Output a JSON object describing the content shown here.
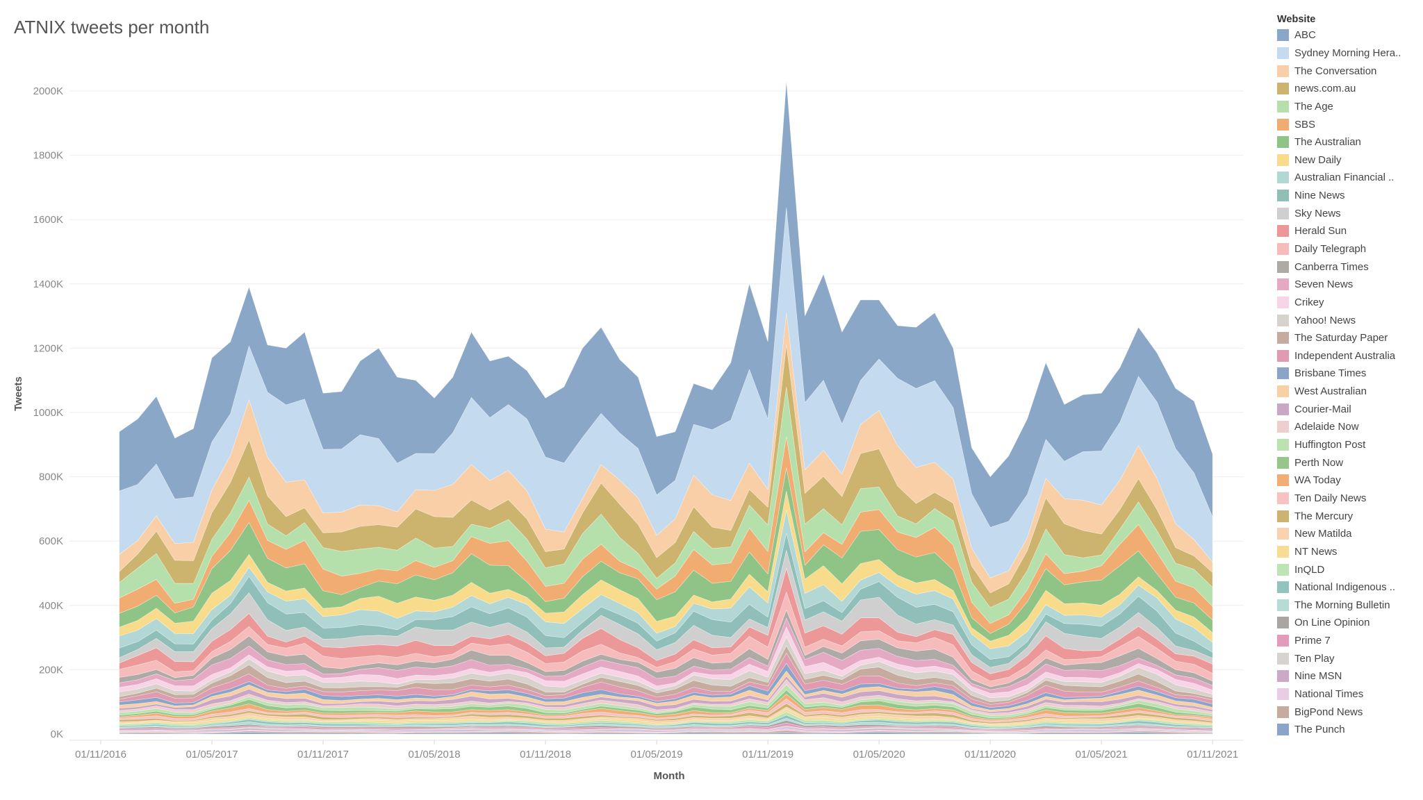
{
  "chart_data": {
    "type": "area",
    "stacked": true,
    "title": "ATNIX tweets per month",
    "xlabel": "Month",
    "ylabel": "Tweets",
    "ylim": [
      0,
      2100000
    ],
    "y_ticks": [
      0,
      200000,
      400000,
      600000,
      800000,
      1000000,
      1200000,
      1400000,
      1600000,
      1800000,
      2000000
    ],
    "y_tick_labels": [
      "0K",
      "200K",
      "400K",
      "600K",
      "800K",
      "1000K",
      "1200K",
      "1400K",
      "1600K",
      "1800K",
      "2000K"
    ],
    "x_tick_labels": [
      "01/11/2016",
      "01/05/2017",
      "01/11/2017",
      "01/05/2018",
      "01/11/2018",
      "01/05/2019",
      "01/11/2019",
      "01/05/2020",
      "01/11/2020",
      "01/05/2021",
      "01/11/2021"
    ],
    "x_range": [
      "01/11/2016",
      "01/12/2021"
    ],
    "first_month": "01/12/2016",
    "legend_title": "Website",
    "legend_position": "right",
    "totals": [
      940,
      980,
      1050,
      920,
      950,
      1170,
      1220,
      1390,
      1210,
      1200,
      1250,
      1060,
      1065,
      1160,
      1200,
      1110,
      1100,
      1045,
      1110,
      1250,
      1160,
      1175,
      1130,
      1045,
      1080,
      1200,
      1265,
      1165,
      1110,
      925,
      940,
      1090,
      1070,
      1155,
      1400,
      1220,
      2030,
      1300,
      1430,
      1250,
      1350,
      1350,
      1270,
      1265,
      1310,
      1200,
      890,
      800,
      865,
      980,
      1155,
      1025,
      1055,
      1060,
      1140,
      1265,
      1185,
      1075,
      1035,
      870
    ],
    "shares": [
      20.0,
      18.0,
      7.5,
      7.0,
      6.0,
      5.0,
      6.0,
      3.5,
      3.5,
      3.5,
      3.5,
      3.0,
      2.5,
      2.0,
      2.0,
      1.5,
      1.5,
      1.5,
      1.5,
      1.0,
      1.0,
      1.0,
      0.8,
      0.8,
      0.8,
      0.8,
      0.6,
      0.6,
      0.6,
      0.5,
      0.5,
      0.5,
      0.4,
      0.4,
      0.4,
      0.3,
      0.3,
      0.3,
      0.3,
      0.3
    ],
    "series": [
      {
        "name": "ABC",
        "color": "#8ba7c8"
      },
      {
        "name": "Sydney Morning Hera..",
        "color": "#c4daee"
      },
      {
        "name": "The Conversation",
        "color": "#f8cfa6"
      },
      {
        "name": "news.com.au",
        "color": "#cdb46e"
      },
      {
        "name": "The Age",
        "color": "#b6e0ab"
      },
      {
        "name": "SBS",
        "color": "#f1ac72"
      },
      {
        "name": "The Australian",
        "color": "#90c487"
      },
      {
        "name": "New Daily",
        "color": "#f8dc8c"
      },
      {
        "name": "Australian Financial ..",
        "color": "#b2d7d5"
      },
      {
        "name": "Nine News",
        "color": "#8fbfb8"
      },
      {
        "name": "Sky News",
        "color": "#cfcfcf"
      },
      {
        "name": "Herald Sun",
        "color": "#ec9898"
      },
      {
        "name": "Daily Telegraph",
        "color": "#f6bcbc"
      },
      {
        "name": "Canberra Times",
        "color": "#aeaaa6"
      },
      {
        "name": "Seven News",
        "color": "#e5a9c4"
      },
      {
        "name": "Crikey",
        "color": "#f8d5e6"
      },
      {
        "name": "Yahoo! News",
        "color": "#d7d2cc"
      },
      {
        "name": "The Saturday Paper",
        "color": "#c6ab9f"
      },
      {
        "name": "Independent Australia",
        "color": "#e09ab1"
      },
      {
        "name": "Brisbane Times",
        "color": "#8aa5c7"
      },
      {
        "name": "West Australian",
        "color": "#f9cfa4"
      },
      {
        "name": "Courier-Mail",
        "color": "#c9a7c5"
      },
      {
        "name": "Adelaide Now",
        "color": "#edcfcf"
      },
      {
        "name": "Huffington Post",
        "color": "#bde2b1"
      },
      {
        "name": "Perth Now",
        "color": "#96c68a"
      },
      {
        "name": "WA Today",
        "color": "#f2ad75"
      },
      {
        "name": "Ten Daily News",
        "color": "#f8c2c2"
      },
      {
        "name": "The Mercury",
        "color": "#ccb370"
      },
      {
        "name": "New Matilda",
        "color": "#f9d2ae"
      },
      {
        "name": "NT News",
        "color": "#f6dc94"
      },
      {
        "name": "InQLD",
        "color": "#bde4b4"
      },
      {
        "name": "National Indigenous ..",
        "color": "#93c3bd"
      },
      {
        "name": "The Morning Bulletin",
        "color": "#b7dbd8"
      },
      {
        "name": "On Line Opinion",
        "color": "#aaa5a3"
      },
      {
        "name": "Prime 7",
        "color": "#e39bbb"
      },
      {
        "name": "Ten Play",
        "color": "#d6d3d1"
      },
      {
        "name": "Nine MSN",
        "color": "#ccaac7"
      },
      {
        "name": "National Times",
        "color": "#e9cde5"
      },
      {
        "name": "BigPond News",
        "color": "#c7ab9f"
      },
      {
        "name": "The Punch",
        "color": "#8aa5c7"
      }
    ]
  }
}
